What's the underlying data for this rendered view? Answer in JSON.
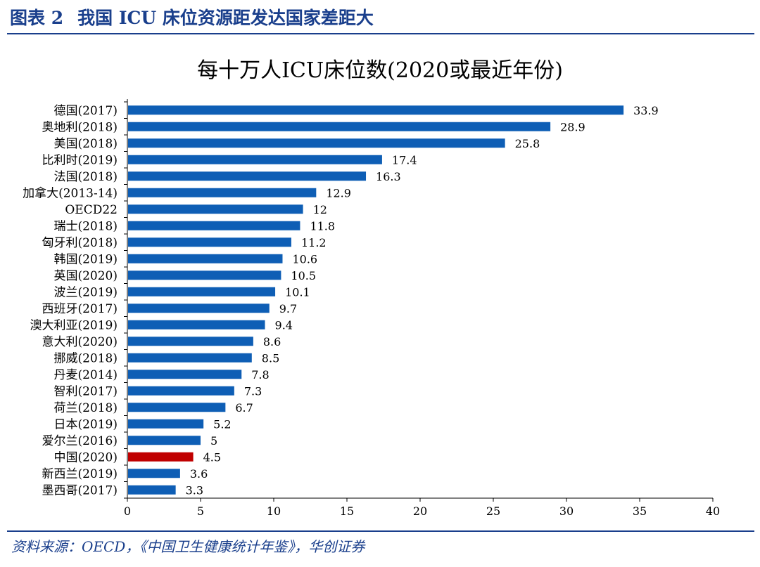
{
  "header": {
    "figure_no": "图表 2",
    "caption": "我国 ICU 床位资源距发达国家差距大"
  },
  "source": "资料来源：OECD，《中国卫生健康统计年鉴》，华创证券",
  "colors": {
    "bar": "#0e5eb5",
    "highlight": "#c00000",
    "brand": "#1a3f8c"
  },
  "chart_data": {
    "type": "bar",
    "orientation": "horizontal",
    "title": "每十万人ICU床位数(2020或最近年份)",
    "xlabel": "",
    "ylabel": "",
    "xlim": [
      0,
      40
    ],
    "xticks": [
      0,
      5,
      10,
      15,
      20,
      25,
      30,
      35,
      40
    ],
    "grid": false,
    "categories": [
      "德国(2017)",
      "奥地利(2018)",
      "美国(2018)",
      "比利时(2019)",
      "法国(2018)",
      "加拿大(2013-14)",
      "OECD22",
      "瑞士(2018)",
      "匈牙利(2018)",
      "韩国(2019)",
      "英国(2020)",
      "波兰(2019)",
      "西班牙(2017)",
      "澳大利亚(2019)",
      "意大利(2020)",
      "挪威(2018)",
      "丹麦(2014)",
      "智利(2017)",
      "荷兰(2018)",
      "日本(2019)",
      "爱尔兰(2016)",
      "中国(2020)",
      "新西兰(2019)",
      "墨西哥(2017)"
    ],
    "values": [
      33.9,
      28.9,
      25.8,
      17.4,
      16.3,
      12.9,
      12,
      11.8,
      11.2,
      10.6,
      10.5,
      10.1,
      9.7,
      9.4,
      8.6,
      8.5,
      7.8,
      7.3,
      6.7,
      5.2,
      5,
      4.5,
      3.6,
      3.3
    ],
    "value_labels": [
      "33.9",
      "28.9",
      "25.8",
      "17.4",
      "16.3",
      "12.9",
      "12",
      "11.8",
      "11.2",
      "10.6",
      "10.5",
      "10.1",
      "9.7",
      "9.4",
      "8.6",
      "8.5",
      "7.8",
      "7.3",
      "6.7",
      "5.2",
      "5",
      "4.5",
      "3.6",
      "3.3"
    ],
    "highlight_category": "中国(2020)"
  }
}
